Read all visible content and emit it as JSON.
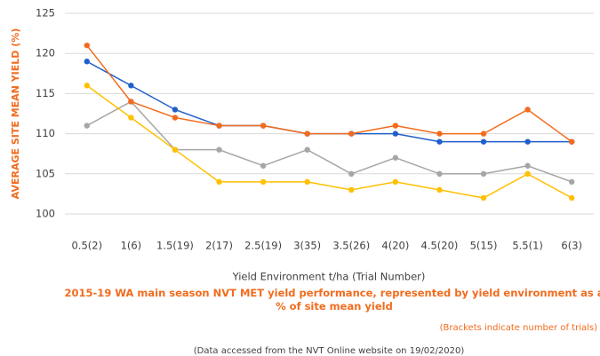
{
  "chart_data": {
    "type": "line",
    "y_label": "AVERAGE SITE MEAN YIELD (%)",
    "x_label": "Yield Environment t/ha (Trial Number)",
    "caption": "2015-19 WA main season NVT MET yield performance, represented by yield environment as a % of site mean yield",
    "note": "(Brackets indicate number of trials)",
    "source": "(Data accessed from the NVT Online website on 19/02/2020)",
    "categories": [
      "0.5(2)",
      "1(6)",
      "1.5(19)",
      "2(17)",
      "2.5(19)",
      "3(35)",
      "3.5(26)",
      "4(20)",
      "4.5(20)",
      "5(15)",
      "5.5(1)",
      "6(3)"
    ],
    "series": [
      {
        "color": "#a6a6a6",
        "values": [
          111,
          114,
          108,
          108,
          106,
          108,
          105,
          107,
          105,
          105,
          106,
          104
        ]
      },
      {
        "color": "#ffc000",
        "values": [
          116,
          112,
          108,
          104,
          104,
          104,
          103,
          104,
          103,
          102,
          105,
          102
        ]
      },
      {
        "color": "#1f5fcc",
        "values": [
          119,
          116,
          113,
          111,
          111,
          110,
          110,
          110,
          109,
          109,
          109,
          109
        ]
      },
      {
        "color": "#f26b1d",
        "values": [
          121,
          114,
          112,
          111,
          111,
          110,
          110,
          111,
          110,
          110,
          113,
          109
        ]
      }
    ],
    "ylim": [
      100,
      125
    ],
    "yticks": [
      100,
      105,
      110,
      115,
      120,
      125
    ],
    "grid": true
  }
}
